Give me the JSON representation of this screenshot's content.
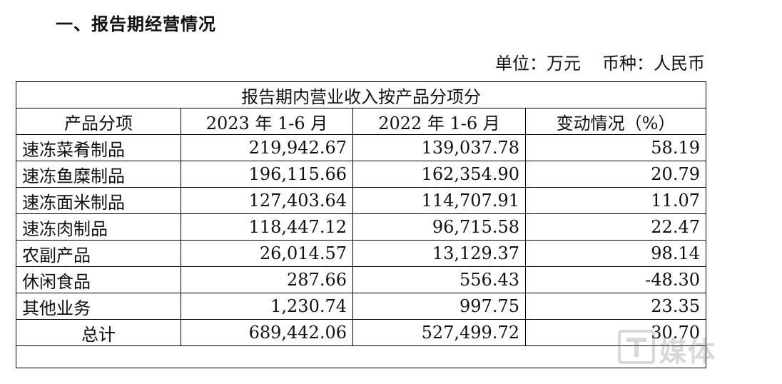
{
  "section": {
    "title": "一、报告期经营情况"
  },
  "unit_line": {
    "unit": "单位：万元",
    "currency": "币种：人民币"
  },
  "table": {
    "caption": "报告期内营业收入按产品分项分",
    "headers": [
      "产品分项",
      "2023 年 1-6 月",
      "2022 年 1-6 月",
      "变动情况（%）"
    ],
    "rows": [
      [
        "速冻菜肴制品",
        "219,942.67",
        "139,037.78",
        "58.19"
      ],
      [
        "速冻鱼糜制品",
        "196,115.66",
        "162,354.90",
        "20.79"
      ],
      [
        "速冻面米制品",
        "127,403.64",
        "114,707.91",
        "11.07"
      ],
      [
        "速冻肉制品",
        "118,447.12",
        "96,715.58",
        "22.47"
      ],
      [
        "农副产品",
        "26,014.57",
        "13,129.37",
        "98.14"
      ],
      [
        "休闲食品",
        "287.66",
        "556.43",
        "-48.30"
      ],
      [
        "其他业务",
        "1,230.74",
        "997.75",
        "23.35"
      ]
    ],
    "total": [
      "总计",
      "689,442.06",
      "527,499.72",
      "30.70"
    ]
  },
  "watermark": {
    "text": "媒体",
    "icon": "tmt-logo-icon"
  }
}
